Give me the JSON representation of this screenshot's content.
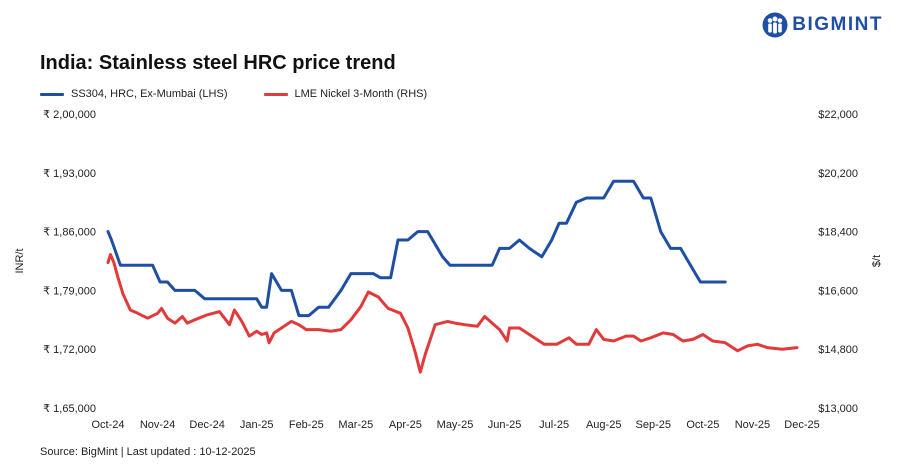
{
  "brand": {
    "name": "BIGMINT",
    "color": "#1f4fa3",
    "icon": "people-logo-icon"
  },
  "chart_data": {
    "type": "line",
    "title": "India: Stainless steel HRC price trend",
    "source": "Source: BigMint | Last updated : 10-12-2025",
    "y_label_left": "INR/t",
    "y_label_right": "$/t",
    "x_ticks": [
      "Oct-24",
      "Nov-24",
      "Dec-24",
      "Jan-25",
      "Feb-25",
      "Mar-25",
      "Apr-25",
      "May-25",
      "Jun-25",
      "Jul-25",
      "Aug-25",
      "Sep-25",
      "Oct-25",
      "Nov-25",
      "Dec-25"
    ],
    "y_left": {
      "min": 165000,
      "max": 200000,
      "ticks": [
        "₹ 1,65,000",
        "₹ 1,72,000",
        "₹ 1,79,000",
        "₹ 1,86,000",
        "₹ 1,93,000",
        "₹ 2,00,000"
      ]
    },
    "y_right": {
      "min": 13000,
      "max": 22000,
      "ticks": [
        "$13,000",
        "$14,800",
        "$16,600",
        "$18,400",
        "$20,200",
        "$22,000"
      ]
    },
    "grid": false,
    "legend_placement": "top-left",
    "series": [
      {
        "name": "SS304, HRC, Ex-Mumbai (LHS)",
        "axis": "left",
        "color": "#1f4fa3",
        "points": [
          [
            0.0,
            186000
          ],
          [
            0.07,
            185000
          ],
          [
            0.25,
            182000
          ],
          [
            0.5,
            182000
          ],
          [
            0.75,
            182000
          ],
          [
            0.9,
            182000
          ],
          [
            1.05,
            180000
          ],
          [
            1.2,
            180000
          ],
          [
            1.35,
            179000
          ],
          [
            1.5,
            179000
          ],
          [
            1.75,
            179000
          ],
          [
            1.95,
            178000
          ],
          [
            2.25,
            178000
          ],
          [
            2.5,
            178000
          ],
          [
            2.75,
            178000
          ],
          [
            3.0,
            178000
          ],
          [
            3.1,
            177000
          ],
          [
            3.2,
            177000
          ],
          [
            3.3,
            181000
          ],
          [
            3.5,
            179000
          ],
          [
            3.7,
            179000
          ],
          [
            3.85,
            176000
          ],
          [
            4.05,
            176000
          ],
          [
            4.25,
            177000
          ],
          [
            4.45,
            177000
          ],
          [
            4.7,
            179000
          ],
          [
            4.9,
            181000
          ],
          [
            5.1,
            181000
          ],
          [
            5.35,
            181000
          ],
          [
            5.5,
            180500
          ],
          [
            5.7,
            180500
          ],
          [
            5.85,
            185000
          ],
          [
            6.05,
            185000
          ],
          [
            6.25,
            186000
          ],
          [
            6.45,
            186000
          ],
          [
            6.75,
            183000
          ],
          [
            6.9,
            182000
          ],
          [
            7.1,
            182000
          ],
          [
            7.3,
            182000
          ],
          [
            7.55,
            182000
          ],
          [
            7.75,
            182000
          ],
          [
            7.9,
            184000
          ],
          [
            8.1,
            184000
          ],
          [
            8.3,
            185000
          ],
          [
            8.5,
            184000
          ],
          [
            8.75,
            183000
          ],
          [
            8.95,
            185000
          ],
          [
            9.1,
            187000
          ],
          [
            9.25,
            187000
          ],
          [
            9.45,
            189500
          ],
          [
            9.65,
            190000
          ],
          [
            10.0,
            190000
          ],
          [
            10.2,
            192000
          ],
          [
            10.6,
            192000
          ],
          [
            10.8,
            190000
          ],
          [
            10.95,
            190000
          ],
          [
            11.15,
            186000
          ],
          [
            11.35,
            184000
          ],
          [
            11.55,
            184000
          ],
          [
            11.75,
            182000
          ],
          [
            11.95,
            180000
          ],
          [
            12.2,
            180000
          ],
          [
            12.45,
            180000
          ]
        ]
      },
      {
        "name": "LME Nickel 3-Month (RHS)",
        "axis": "right",
        "color": "#e23a3a",
        "points": [
          [
            0.0,
            17450
          ],
          [
            0.05,
            17700
          ],
          [
            0.12,
            17450
          ],
          [
            0.2,
            17000
          ],
          [
            0.3,
            16500
          ],
          [
            0.45,
            16000
          ],
          [
            0.6,
            15900
          ],
          [
            0.8,
            15750
          ],
          [
            1.0,
            15900
          ],
          [
            1.08,
            16050
          ],
          [
            1.2,
            15750
          ],
          [
            1.35,
            15600
          ],
          [
            1.5,
            15800
          ],
          [
            1.6,
            15600
          ],
          [
            1.75,
            15700
          ],
          [
            2.0,
            15850
          ],
          [
            2.25,
            15950
          ],
          [
            2.45,
            15550
          ],
          [
            2.55,
            16000
          ],
          [
            2.7,
            15650
          ],
          [
            2.85,
            15200
          ],
          [
            3.0,
            15350
          ],
          [
            3.1,
            15250
          ],
          [
            3.2,
            15300
          ],
          [
            3.25,
            15000
          ],
          [
            3.35,
            15300
          ],
          [
            3.5,
            15450
          ],
          [
            3.7,
            15650
          ],
          [
            3.85,
            15550
          ],
          [
            4.0,
            15400
          ],
          [
            4.25,
            15400
          ],
          [
            4.5,
            15350
          ],
          [
            4.7,
            15400
          ],
          [
            4.9,
            15700
          ],
          [
            5.1,
            16100
          ],
          [
            5.25,
            16550
          ],
          [
            5.45,
            16400
          ],
          [
            5.65,
            16050
          ],
          [
            5.9,
            15900
          ],
          [
            6.05,
            15450
          ],
          [
            6.2,
            14700
          ],
          [
            6.3,
            14100
          ],
          [
            6.4,
            14650
          ],
          [
            6.6,
            15550
          ],
          [
            6.85,
            15650
          ],
          [
            7.0,
            15600
          ],
          [
            7.2,
            15550
          ],
          [
            7.45,
            15500
          ],
          [
            7.6,
            15800
          ],
          [
            7.75,
            15600
          ],
          [
            7.9,
            15400
          ],
          [
            8.05,
            15050
          ],
          [
            8.1,
            15450
          ],
          [
            8.3,
            15450
          ],
          [
            8.55,
            15200
          ],
          [
            8.8,
            14950
          ],
          [
            9.05,
            14950
          ],
          [
            9.3,
            15150
          ],
          [
            9.45,
            14950
          ],
          [
            9.7,
            14950
          ],
          [
            9.85,
            15400
          ],
          [
            10.0,
            15100
          ],
          [
            10.2,
            15050
          ],
          [
            10.45,
            15200
          ],
          [
            10.6,
            15200
          ],
          [
            10.75,
            15050
          ],
          [
            10.95,
            15150
          ],
          [
            11.2,
            15300
          ],
          [
            11.4,
            15250
          ],
          [
            11.6,
            15050
          ],
          [
            11.8,
            15100
          ],
          [
            12.0,
            15250
          ],
          [
            12.2,
            15050
          ],
          [
            12.45,
            15000
          ],
          [
            12.7,
            14750
          ],
          [
            12.9,
            14900
          ],
          [
            13.1,
            14950
          ],
          [
            13.3,
            14850
          ],
          [
            13.6,
            14800
          ],
          [
            13.9,
            14850
          ]
        ]
      }
    ]
  }
}
